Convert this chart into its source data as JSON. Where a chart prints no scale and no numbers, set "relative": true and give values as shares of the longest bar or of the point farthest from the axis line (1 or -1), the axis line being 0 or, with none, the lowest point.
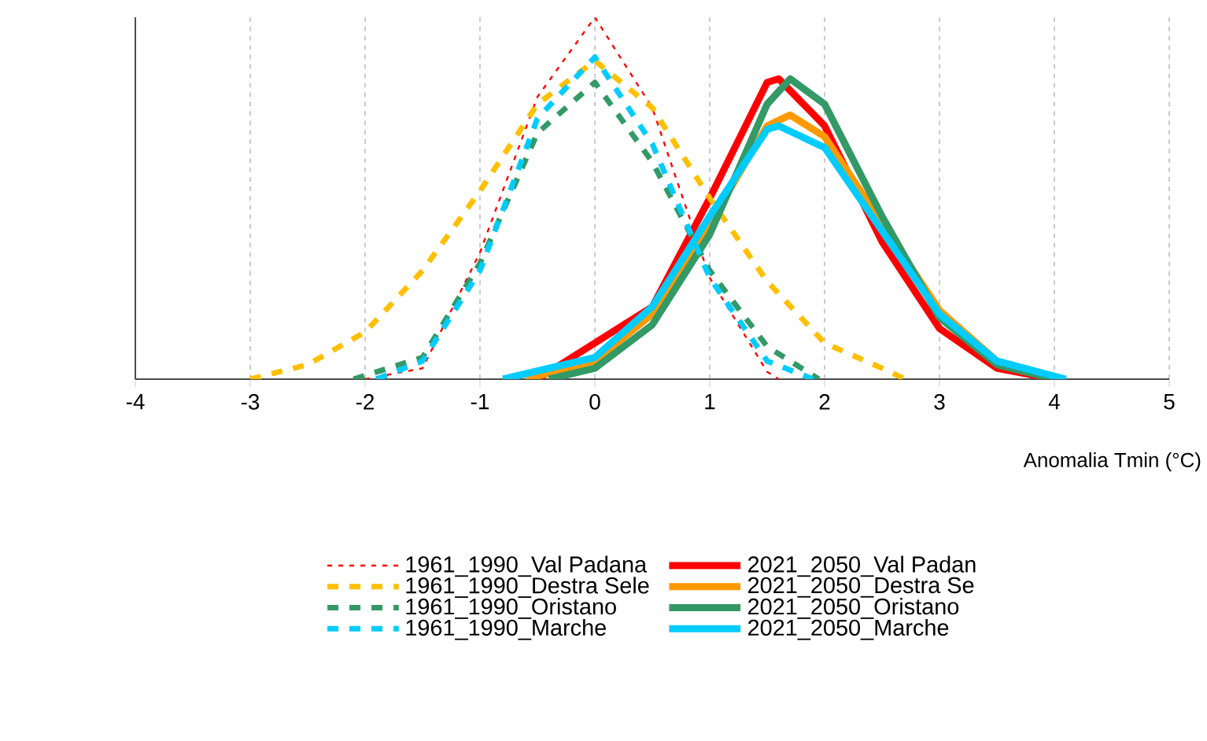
{
  "chart_data": {
    "type": "line",
    "relative": true,
    "xlabel": "Anomalia Tmin (°C)",
    "xlim": [
      -4,
      5
    ],
    "xticks": [
      -4,
      -3,
      -2,
      -1,
      0,
      1,
      2,
      3,
      4,
      5
    ],
    "grid": "x",
    "legend": "bottom",
    "marker": "none",
    "series": [
      {
        "name": "1961_1990_Val Padana",
        "color": "#ff0000",
        "line_style": "dotted",
        "x": [
          -2,
          -1.5,
          -1,
          -0.5,
          0,
          0.5,
          1,
          1.5,
          1.6
        ],
        "values": [
          0,
          0.03,
          0.35,
          0.78,
          1,
          0.75,
          0.28,
          0.02,
          0
        ]
      },
      {
        "name": "1961_1990_Destra Sele",
        "color": "#ffc000",
        "line_style": "dashed",
        "x": [
          -3,
          -2.5,
          -2,
          -1.5,
          -1,
          -0.5,
          0,
          0.5,
          1,
          1.5,
          2,
          2.5,
          2.7
        ],
        "values": [
          0,
          0.04,
          0.13,
          0.3,
          0.52,
          0.76,
          0.88,
          0.75,
          0.5,
          0.27,
          0.1,
          0.03,
          0
        ]
      },
      {
        "name": "1961_1990_Oristano",
        "color": "#339966",
        "line_style": "dashed",
        "x": [
          -2.1,
          -1.5,
          -1,
          -0.5,
          0,
          0.5,
          1,
          1.5,
          1.95
        ],
        "values": [
          0,
          0.06,
          0.32,
          0.68,
          0.82,
          0.6,
          0.3,
          0.09,
          0
        ]
      },
      {
        "name": "1961_1990_Marche",
        "color": "#00ccff",
        "line_style": "dashed",
        "x": [
          -1.9,
          -1.5,
          -1,
          -0.5,
          0,
          0.5,
          1,
          1.5,
          1.9
        ],
        "values": [
          0,
          0.05,
          0.3,
          0.72,
          0.89,
          0.65,
          0.28,
          0.05,
          0
        ]
      },
      {
        "name": "2021_2050_Val Padan",
        "color": "#ff0000",
        "line_style": "solid",
        "x": [
          -0.5,
          0.5,
          1,
          1.5,
          1.6,
          2,
          2.5,
          3,
          3.5,
          4
        ],
        "values": [
          0,
          0.2,
          0.5,
          0.82,
          0.83,
          0.7,
          0.38,
          0.14,
          0.03,
          0
        ]
      },
      {
        "name": "2021_2050_Destra Se",
        "color": "#ff9900",
        "line_style": "solid",
        "x": [
          -0.6,
          0,
          0.5,
          1,
          1.5,
          1.7,
          2,
          2.5,
          3,
          3.5,
          4
        ],
        "values": [
          0,
          0.05,
          0.18,
          0.43,
          0.7,
          0.73,
          0.67,
          0.43,
          0.19,
          0.05,
          0
        ]
      },
      {
        "name": "2021_2050_Oristano",
        "color": "#339966",
        "line_style": "solid",
        "x": [
          -0.4,
          0,
          0.5,
          1,
          1.5,
          1.7,
          2,
          2.5,
          3,
          3.5,
          4
        ],
        "values": [
          0,
          0.03,
          0.15,
          0.4,
          0.76,
          0.83,
          0.76,
          0.45,
          0.17,
          0.04,
          0
        ]
      },
      {
        "name": "2021_2050_Marche",
        "color": "#00ccff",
        "line_style": "solid",
        "x": [
          -0.8,
          0,
          0.5,
          1,
          1.5,
          1.6,
          2,
          2.5,
          3,
          3.5,
          4.1
        ],
        "values": [
          0,
          0.06,
          0.2,
          0.45,
          0.69,
          0.7,
          0.64,
          0.41,
          0.18,
          0.05,
          0
        ]
      }
    ]
  }
}
